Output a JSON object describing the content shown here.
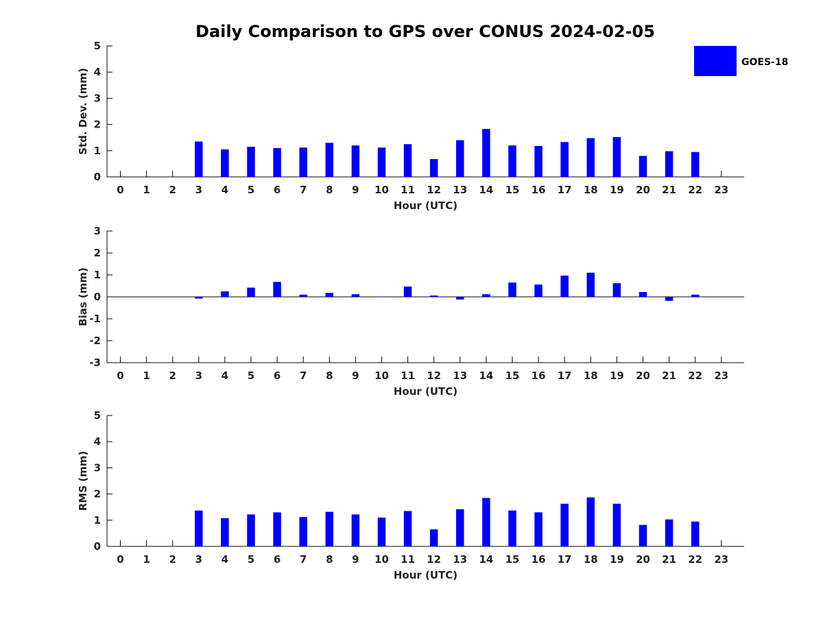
{
  "title": "Daily Comparison to GPS over CONUS 2024-02-05",
  "legend": {
    "label": "GOES-18",
    "color": "#0000ff",
    "placement": "top-right"
  },
  "chart_data": [
    {
      "type": "bar",
      "ylabel": "Std. Dev. (mm)",
      "xlabel": "Hour (UTC)",
      "ylim": [
        0,
        5
      ],
      "yticks": [
        0,
        1,
        2,
        3,
        4,
        5
      ],
      "categories": [
        "0",
        "1",
        "2",
        "3",
        "4",
        "5",
        "6",
        "7",
        "8",
        "9",
        "10",
        "11",
        "12",
        "13",
        "14",
        "15",
        "16",
        "17",
        "18",
        "19",
        "20",
        "21",
        "22",
        "23"
      ],
      "series": [
        {
          "name": "GOES-18",
          "color": "#0000ff",
          "values": [
            null,
            null,
            null,
            1.35,
            1.05,
            1.15,
            1.1,
            1.12,
            1.3,
            1.2,
            1.12,
            1.25,
            0.68,
            1.4,
            1.83,
            1.2,
            1.18,
            1.33,
            1.48,
            1.52,
            0.8,
            0.98,
            0.95,
            null
          ]
        }
      ]
    },
    {
      "type": "bar",
      "ylabel": "Bias (mm)",
      "xlabel": "Hour (UTC)",
      "ylim": [
        -3,
        3
      ],
      "yticks": [
        -3,
        -2,
        -1,
        0,
        1,
        2,
        3
      ],
      "categories": [
        "0",
        "1",
        "2",
        "3",
        "4",
        "5",
        "6",
        "7",
        "8",
        "9",
        "10",
        "11",
        "12",
        "13",
        "14",
        "15",
        "16",
        "17",
        "18",
        "19",
        "20",
        "21",
        "22",
        "23"
      ],
      "series": [
        {
          "name": "GOES-18",
          "color": "#0000ff",
          "values": [
            null,
            null,
            null,
            -0.08,
            0.25,
            0.42,
            0.68,
            0.1,
            0.18,
            0.12,
            0.0,
            0.47,
            0.06,
            -0.12,
            0.12,
            0.65,
            0.56,
            0.97,
            1.1,
            0.62,
            0.22,
            -0.18,
            0.1,
            null
          ]
        }
      ]
    },
    {
      "type": "bar",
      "ylabel": "RMS (mm)",
      "xlabel": "Hour (UTC)",
      "ylim": [
        0,
        5
      ],
      "yticks": [
        0,
        1,
        2,
        3,
        4,
        5
      ],
      "categories": [
        "0",
        "1",
        "2",
        "3",
        "4",
        "5",
        "6",
        "7",
        "8",
        "9",
        "10",
        "11",
        "12",
        "13",
        "14",
        "15",
        "16",
        "17",
        "18",
        "19",
        "20",
        "21",
        "22",
        "23"
      ],
      "series": [
        {
          "name": "GOES-18",
          "color": "#0000ff",
          "values": [
            null,
            null,
            null,
            1.37,
            1.08,
            1.22,
            1.3,
            1.12,
            1.32,
            1.22,
            1.1,
            1.35,
            0.65,
            1.42,
            1.85,
            1.37,
            1.3,
            1.63,
            1.87,
            1.63,
            0.82,
            1.03,
            0.95,
            null
          ]
        }
      ]
    }
  ]
}
